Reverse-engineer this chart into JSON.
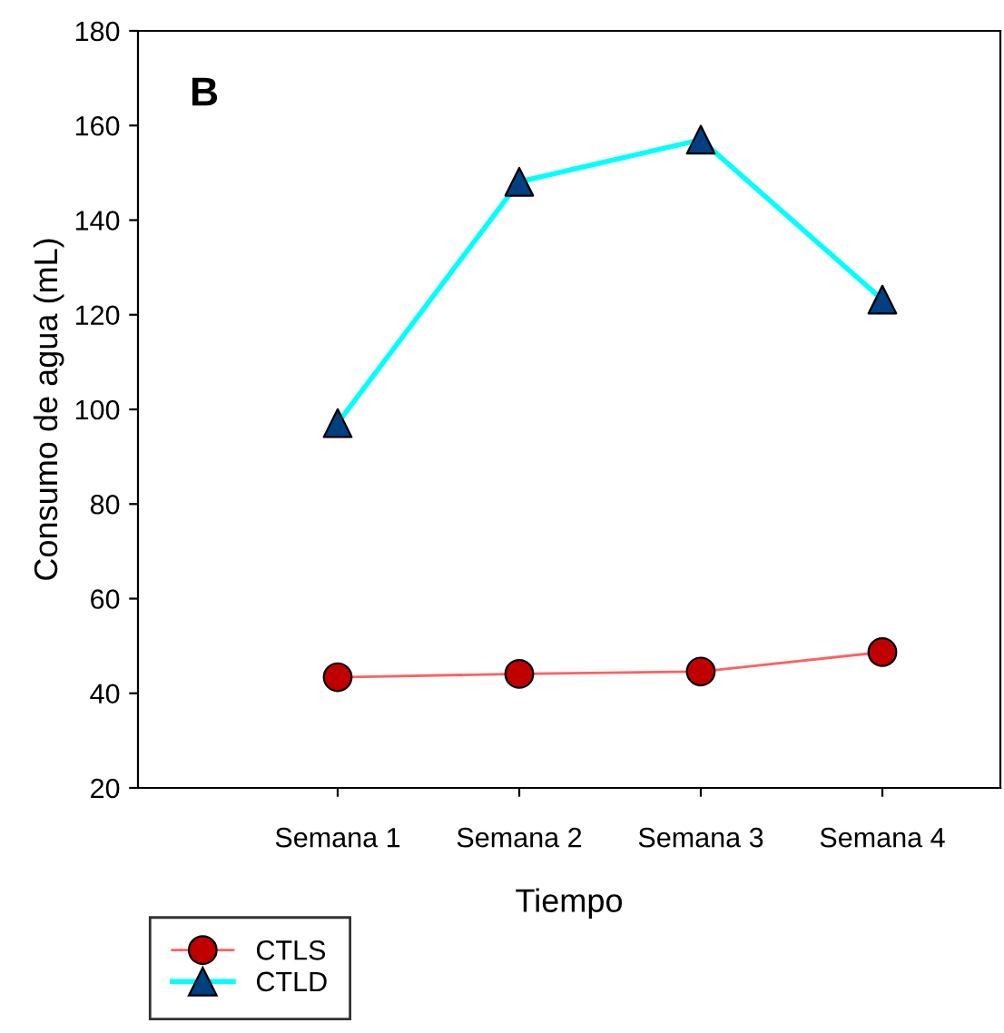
{
  "chart_data": {
    "type": "line",
    "xlabel": "Tiempo",
    "ylabel": "Consumo de agua (mL)",
    "annotations": [
      "B"
    ],
    "categories": [
      "Semana 1",
      "Semana 2",
      "Semana 3",
      "Semana 4"
    ],
    "series": [
      {
        "name": "CTLS",
        "color": "#ff6060",
        "colors": [
          "#c00000",
          "#c00000",
          "#c00000",
          "#c00000"
        ],
        "marker": "circle",
        "values": [
          43.4,
          44.1,
          44.6,
          48.7
        ]
      },
      {
        "name": "CTLD",
        "color": "#00ffff",
        "colors": [
          "#004080",
          "#004080",
          "#004080",
          "#004080"
        ],
        "marker": "triangle",
        "values": [
          97.1,
          148.1,
          157,
          123.2
        ]
      }
    ],
    "ylim": [
      20,
      180
    ],
    "yticks": [
      20,
      40,
      60,
      80,
      100,
      120,
      140,
      160,
      180
    ],
    "grid": false,
    "legend": "bottom left"
  }
}
